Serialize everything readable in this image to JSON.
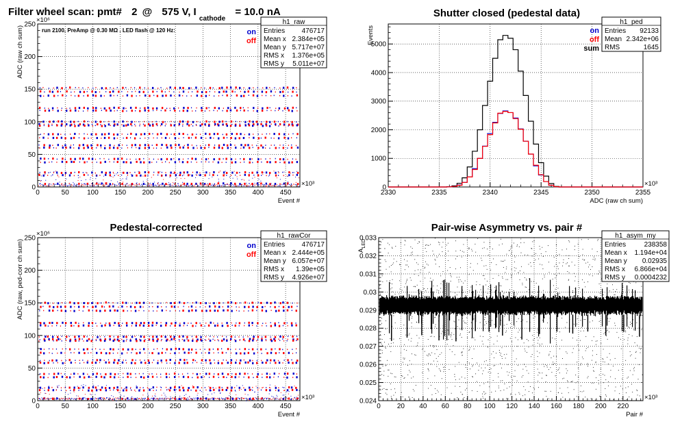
{
  "canvas_title": {
    "prefix": "Filter wheel scan: pmt#",
    "pmt": "2",
    "at": "@",
    "voltage": "575 V, I",
    "subscript": "cathode",
    "current": "= 10.0 nA"
  },
  "chart_data": [
    {
      "id": "raw",
      "type": "scatter",
      "title": "",
      "annotation": "run 2100, PreAmp @ 0.30 MΩ . LED flash @  120 Hz:",
      "xlabel": "Event #",
      "ylabel": "ADC (raw ch sum)",
      "x_exponent": "×10³",
      "y_exponent": "×10⁶",
      "xlim": [
        0,
        476
      ],
      "ylim": [
        0,
        250
      ],
      "x_ticks": [
        0,
        50,
        100,
        150,
        200,
        250,
        300,
        350,
        400,
        450
      ],
      "y_ticks": [
        0,
        50,
        100,
        150,
        200,
        250
      ],
      "legend": [
        {
          "name": "on",
          "color": "#0000cc"
        },
        {
          "name": "off",
          "color": "#ff0000"
        }
      ],
      "grid": true,
      "levels": [
        152,
        146,
        140,
        121,
        117,
        100,
        96,
        94,
        81,
        75,
        64,
        60,
        43,
        38,
        22,
        18,
        5
      ],
      "stats": {
        "name": "h1_raw",
        "rows": [
          [
            "Entries",
            "476717"
          ],
          [
            "Mean x",
            "2.384e+05"
          ],
          [
            "Mean y",
            "5.717e+07"
          ],
          [
            "RMS x",
            "1.376e+05"
          ],
          [
            "RMS y",
            "5.011e+07"
          ]
        ]
      }
    },
    {
      "id": "ped",
      "type": "line",
      "title": "Shutter closed (pedestal data)",
      "xlabel": "ADC (raw ch sum)",
      "ylabel": "Events",
      "x_exponent": "×10³",
      "xlim": [
        2330,
        2355
      ],
      "ylim": [
        0,
        5700
      ],
      "x_ticks": [
        2330,
        2335,
        2340,
        2345,
        2350,
        2355
      ],
      "y_ticks": [
        0,
        1000,
        2000,
        3000,
        4000,
        5000
      ],
      "legend": [
        {
          "name": "on",
          "color": "#0000cc"
        },
        {
          "name": "off",
          "color": "#ff0000"
        },
        {
          "name": "sum",
          "color": "#000000"
        }
      ],
      "grid": true,
      "x": [
        2336,
        2336.5,
        2337,
        2337.5,
        2338,
        2338.5,
        2339,
        2339.5,
        2340,
        2340.5,
        2341,
        2341.5,
        2342,
        2342.5,
        2343,
        2343.5,
        2344,
        2344.5,
        2345,
        2345.5,
        2346,
        2346.5
      ],
      "series": [
        {
          "name": "sum",
          "color": "#000000",
          "values": [
            10,
            40,
            130,
            320,
            700,
            1250,
            2000,
            2850,
            3700,
            4500,
            5150,
            5300,
            5200,
            4800,
            4050,
            3200,
            2300,
            1500,
            850,
            380,
            120,
            20
          ]
        },
        {
          "name": "on",
          "color": "#0000cc",
          "values": [
            5,
            20,
            70,
            160,
            350,
            640,
            1000,
            1430,
            1870,
            2260,
            2570,
            2660,
            2600,
            2410,
            2030,
            1600,
            1150,
            740,
            420,
            190,
            60,
            10
          ]
        },
        {
          "name": "off",
          "color": "#ff0000",
          "values": [
            5,
            20,
            60,
            160,
            350,
            610,
            1000,
            1420,
            1830,
            2240,
            2580,
            2640,
            2600,
            2390,
            2020,
            1600,
            1150,
            760,
            430,
            190,
            60,
            10
          ]
        }
      ],
      "stats": {
        "name": "h1_ped",
        "rows": [
          [
            "Entries",
            "92133"
          ],
          [
            "Mean",
            "2.342e+06"
          ],
          [
            "RMS",
            "1645"
          ]
        ]
      }
    },
    {
      "id": "cor",
      "type": "scatter",
      "title": "Pedestal-corrected",
      "xlabel": "Event #",
      "ylabel": "ADC (raw, ped-corr ch sum)",
      "x_exponent": "×10³",
      "y_exponent": "×10⁶",
      "xlim": [
        0,
        476
      ],
      "ylim": [
        0,
        250
      ],
      "x_ticks": [
        0,
        50,
        100,
        150,
        200,
        250,
        300,
        350,
        400,
        450
      ],
      "y_ticks": [
        0,
        50,
        100,
        150,
        200,
        250
      ],
      "legend": [
        {
          "name": "on",
          "color": "#0000cc"
        },
        {
          "name": "off",
          "color": "#ff0000"
        }
      ],
      "grid": true,
      "levels": [
        150,
        144,
        138,
        119,
        115,
        98,
        94,
        92,
        79,
        73,
        62,
        58,
        41,
        36,
        20,
        16,
        3
      ],
      "stats": {
        "name": "h1_rawCor",
        "rows": [
          [
            "Entries",
            "476717"
          ],
          [
            "Mean x",
            "2.444e+05"
          ],
          [
            "Mean y",
            "6.057e+07"
          ],
          [
            "RMS x",
            "1.39e+05"
          ],
          [
            "RMS y",
            "4.926e+07"
          ]
        ]
      }
    },
    {
      "id": "asym",
      "type": "scatter",
      "title": "Pair-wise Asymmetry vs. pair #",
      "xlabel": "Pair #",
      "ylabel": "A",
      "ylabel_sub": "LED",
      "x_exponent": "×10³",
      "xlim": [
        0,
        238
      ],
      "ylim": [
        0.024,
        0.033
      ],
      "x_ticks": [
        0,
        20,
        40,
        60,
        80,
        100,
        120,
        140,
        160,
        180,
        200,
        220
      ],
      "y_ticks": [
        0.024,
        0.025,
        0.026,
        0.027,
        0.028,
        0.029,
        0.03,
        0.031,
        0.032,
        0.033
      ],
      "y_tick_labels": [
        "0.024",
        "0.025",
        "0.026",
        "0.027",
        "0.028",
        "0.029",
        "0.03",
        "0.031",
        "0.032",
        "0.033"
      ],
      "grid": true,
      "center": 0.02935,
      "stats": {
        "name": "h1_asym_my",
        "rows": [
          [
            "Entries",
            "238358"
          ],
          [
            "Mean x",
            "1.194e+04"
          ],
          [
            "Mean y",
            "0.02935"
          ],
          [
            "RMS x",
            "6.866e+04"
          ],
          [
            "RMS y",
            "0.0004232"
          ]
        ]
      }
    }
  ]
}
